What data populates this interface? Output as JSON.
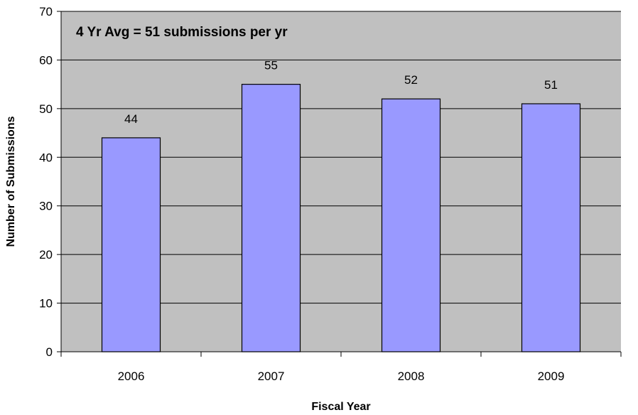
{
  "chart_data": {
    "type": "bar",
    "categories": [
      "2006",
      "2007",
      "2008",
      "2009"
    ],
    "values": [
      44,
      55,
      52,
      51
    ],
    "data_labels": [
      "44",
      "55",
      "52",
      "51"
    ],
    "title": "",
    "annotation": "4 Yr Avg = 51 submissions per yr",
    "xlabel": "Fiscal Year",
    "ylabel": "Number of Submissions",
    "ylim": [
      0,
      70
    ],
    "yticks": [
      0,
      10,
      20,
      30,
      40,
      50,
      60,
      70
    ],
    "ytick_labels": [
      "0",
      "10",
      "20",
      "30",
      "40",
      "50",
      "60",
      "70"
    ],
    "grid": true,
    "legend": "none",
    "colors": {
      "plot_background": "#c0c0c0",
      "bar_fill": "#9999ff",
      "bar_stroke": "#000000",
      "gridline": "#000000"
    }
  }
}
